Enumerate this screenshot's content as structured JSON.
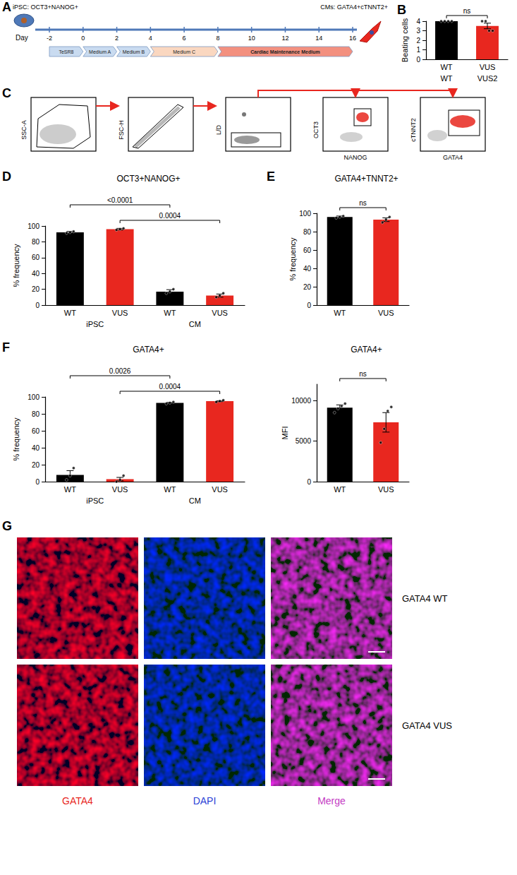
{
  "timeline": {
    "panel": "A",
    "start_label": "iPSC: OCT3+NANOG+",
    "end_label": "CMs: GATA4+cTNNT2+",
    "axis_label": "Day",
    "days": [
      -2,
      0,
      2,
      4,
      6,
      8,
      10,
      12,
      14,
      16
    ],
    "media": [
      {
        "label": "TeSR8",
        "from": -2,
        "to": 0,
        "color": "#c9dbf0"
      },
      {
        "label": "Medium A",
        "from": 0,
        "to": 2,
        "color": "#c9dbf0"
      },
      {
        "label": "Medium B",
        "from": 2,
        "to": 4,
        "color": "#c9dbf0"
      },
      {
        "label": "Medium C",
        "from": 4,
        "to": 8,
        "color": "#fad7c0"
      },
      {
        "label": "Cardiac Maintenance Medium",
        "from": 8,
        "to": 16,
        "color": "#f3907f"
      }
    ]
  },
  "chart_data": [
    {
      "panel": "B",
      "type": "bar",
      "ylabel": "Beating cells",
      "categories": [
        "WT",
        "VUS"
      ],
      "groups": [
        "WT",
        "VUS2"
      ],
      "values": [
        4,
        3.5
      ],
      "errors": [
        0,
        0.29
      ],
      "points": [
        [
          4,
          4,
          4,
          4
        ],
        [
          4,
          4,
          3,
          3
        ]
      ],
      "colors": [
        "#000000",
        "#e8271f"
      ],
      "ylim": [
        0,
        4
      ],
      "yticks": [
        0,
        1,
        2,
        3,
        4
      ],
      "comparisons": [
        {
          "from": 0,
          "to": 1,
          "label": "ns"
        }
      ]
    },
    {
      "panel": "D",
      "type": "bar",
      "title": "OCT3+NANOG+",
      "ylabel": "% frequency",
      "categories": [
        "WT",
        "VUS",
        "WT",
        "VUS"
      ],
      "groups": [
        "iPSC",
        "CM"
      ],
      "values": [
        92,
        96,
        17,
        12
      ],
      "errors": [
        1.2,
        1,
        2.5,
        2
      ],
      "points": [
        [
          91,
          92,
          93
        ],
        [
          95,
          96,
          97
        ],
        [
          15,
          17,
          20
        ],
        [
          10,
          12,
          15
        ]
      ],
      "colors": [
        "#000000",
        "#e8271f",
        "#000000",
        "#e8271f"
      ],
      "ylim": [
        0,
        100
      ],
      "yticks": [
        0,
        20,
        40,
        60,
        80,
        100
      ],
      "comparisons": [
        {
          "from": 1,
          "to": 3,
          "label": "0.0004"
        },
        {
          "from": 0,
          "to": 2,
          "label": "<0.0001"
        }
      ]
    },
    {
      "panel": "E",
      "type": "bar",
      "title": "GATA4+TNNT2+",
      "ylabel": "% frequency",
      "categories": [
        "WT",
        "VUS"
      ],
      "values": [
        96,
        93
      ],
      "errors": [
        1,
        2
      ],
      "points": [
        [
          95,
          96,
          97
        ],
        [
          90,
          93,
          96
        ]
      ],
      "colors": [
        "#000000",
        "#e8271f"
      ],
      "ylim": [
        0,
        100
      ],
      "yticks": [
        0,
        20,
        40,
        60,
        80,
        100
      ],
      "comparisons": [
        {
          "from": 0,
          "to": 1,
          "label": "ns"
        }
      ]
    },
    {
      "panel": "F",
      "type": "bar",
      "title": "GATA4+",
      "ylabel": "% frequency",
      "categories": [
        "WT",
        "VUS",
        "WT",
        "VUS"
      ],
      "groups": [
        "iPSC",
        "CM"
      ],
      "values": [
        8,
        3,
        93,
        95
      ],
      "errors": [
        5,
        2,
        0.5,
        0.5
      ],
      "points": [
        [
          2,
          7,
          16
        ],
        [
          0,
          2,
          7
        ],
        [
          92,
          93,
          94
        ],
        [
          94,
          95,
          96
        ]
      ],
      "colors": [
        "#000000",
        "#e8271f",
        "#000000",
        "#e8271f"
      ],
      "ylim": [
        0,
        100
      ],
      "yticks": [
        0,
        20,
        40,
        60,
        80,
        100
      ],
      "comparisons": [
        {
          "from": 1,
          "to": 3,
          "label": "0.0004"
        },
        {
          "from": 0,
          "to": 2,
          "label": "0.0026"
        }
      ]
    },
    {
      "type": "bar",
      "title": "GATA4+",
      "ylabel": "MFI",
      "categories": [
        "WT",
        "VUS"
      ],
      "values": [
        9100,
        7300
      ],
      "errors": [
        350,
        1200
      ],
      "points": [
        [
          8500,
          9000,
          9300,
          9600
        ],
        [
          4800,
          6500,
          8700,
          9200
        ]
      ],
      "colors": [
        "#000000",
        "#e8271f"
      ],
      "ylim": [
        0,
        12000
      ],
      "yticks": [
        0,
        5000,
        10000
      ],
      "comparisons": [
        {
          "from": 0,
          "to": 1,
          "label": "ns"
        }
      ]
    }
  ],
  "gating": {
    "panel": "C",
    "plots": [
      {
        "y": "SSC-A"
      },
      {
        "y": "FSC-H"
      },
      {
        "y": "L/D"
      },
      {
        "x": "NANOG",
        "y": "OCT3"
      },
      {
        "x": "GATA4",
        "y": "cTNNT2"
      }
    ]
  },
  "images": {
    "panel": "G",
    "channels": [
      {
        "label": "GATA4",
        "color": "#e8271f"
      },
      {
        "label": "DAPI",
        "color": "#2b3fd6"
      },
      {
        "label": "Merge",
        "color": "#c43cc4"
      }
    ],
    "rows": [
      "GATA4 WT",
      "GATA4 VUS"
    ]
  }
}
